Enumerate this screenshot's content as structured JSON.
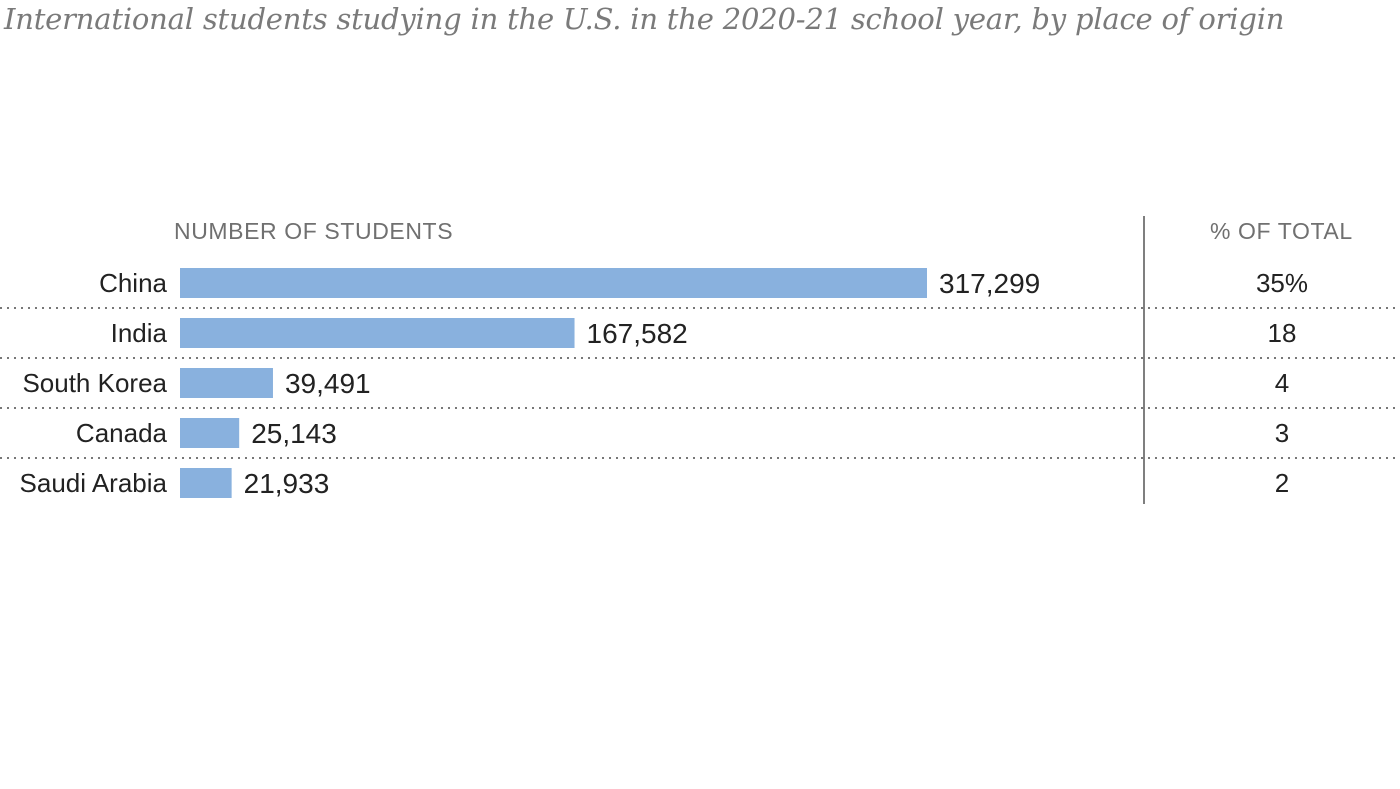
{
  "chart_data": {
    "type": "bar",
    "orientation": "horizontal",
    "title": "International students studying in the U.S. in the 2020-21 school year, by place of origin",
    "number_header": "NUMBER OF STUDENTS",
    "percent_header": "% OF TOTAL",
    "categories": [
      "China",
      "India",
      "South Korea",
      "Canada",
      "Saudi Arabia"
    ],
    "values": [
      317299,
      167582,
      39491,
      25143,
      21933
    ],
    "value_labels": [
      "317,299",
      "167,582",
      "39,491",
      "25,143",
      "21,933"
    ],
    "percent_values": [
      35,
      18,
      4,
      3,
      2
    ],
    "percent_labels": [
      "35%",
      "18",
      "4",
      "3",
      "2"
    ],
    "xlim": [
      0,
      317299
    ],
    "grid": false,
    "colors": {
      "bar": "#89b1de",
      "title": "#7a7a7a",
      "header": "#707070",
      "text": "#222222",
      "divider": "#555555",
      "dotted_rule": "#777777"
    }
  }
}
